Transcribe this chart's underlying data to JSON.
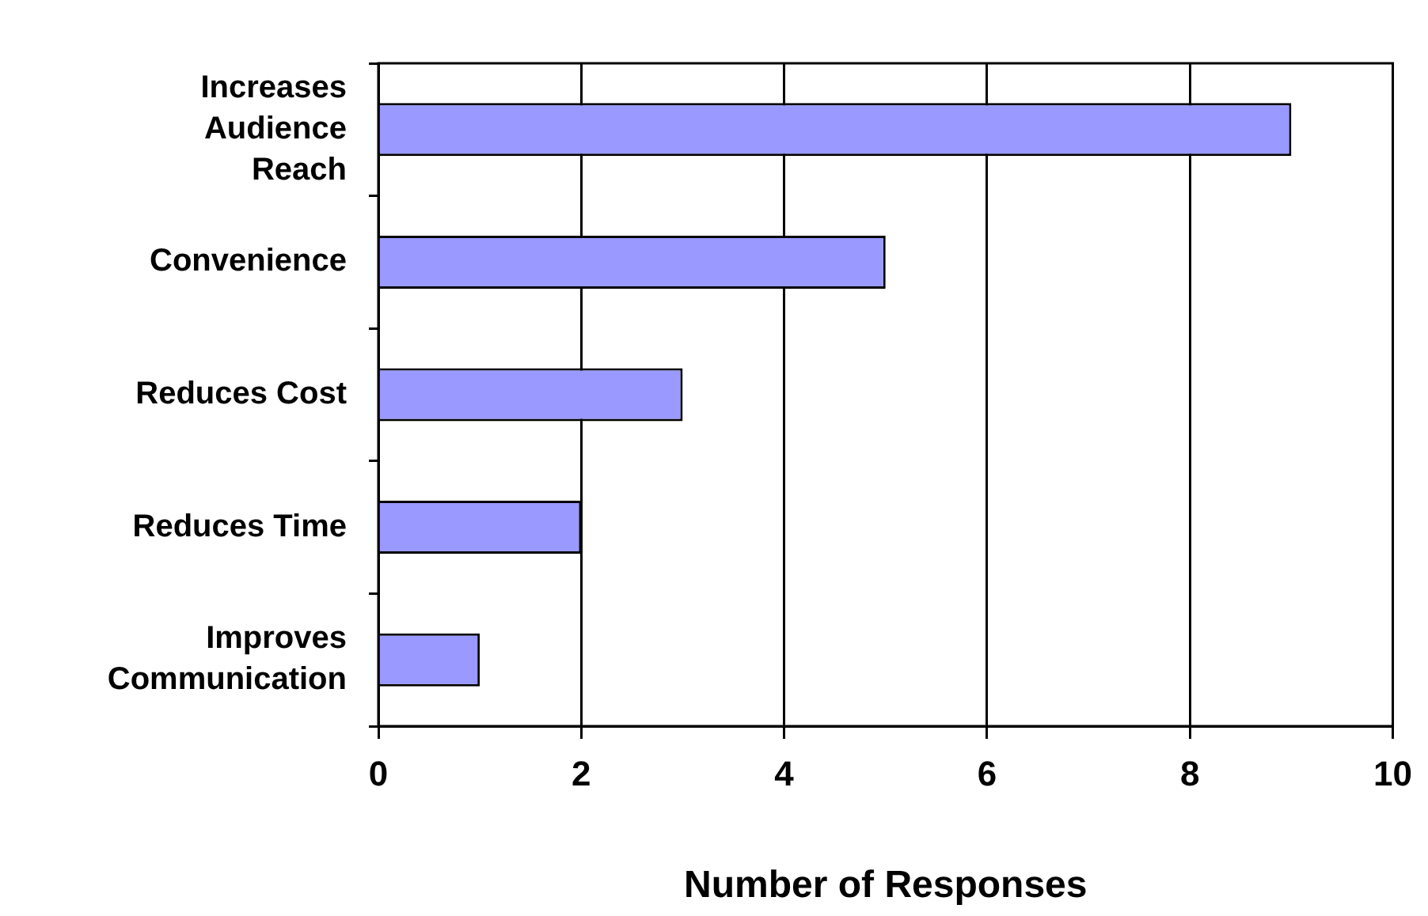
{
  "chart_data": {
    "type": "bar",
    "orientation": "horizontal",
    "xlabel": "Number of Responses",
    "categories": [
      "Increases Audience Reach",
      "Convenience",
      "Reduces Cost",
      "Reduces Time",
      "Improves Communication"
    ],
    "values": [
      9,
      5,
      3,
      2,
      1
    ],
    "color": "#9999ff",
    "xlim": [
      0,
      10
    ],
    "xticks": [
      0,
      2,
      4,
      6,
      8,
      10
    ],
    "grid": "x",
    "legend": false
  }
}
